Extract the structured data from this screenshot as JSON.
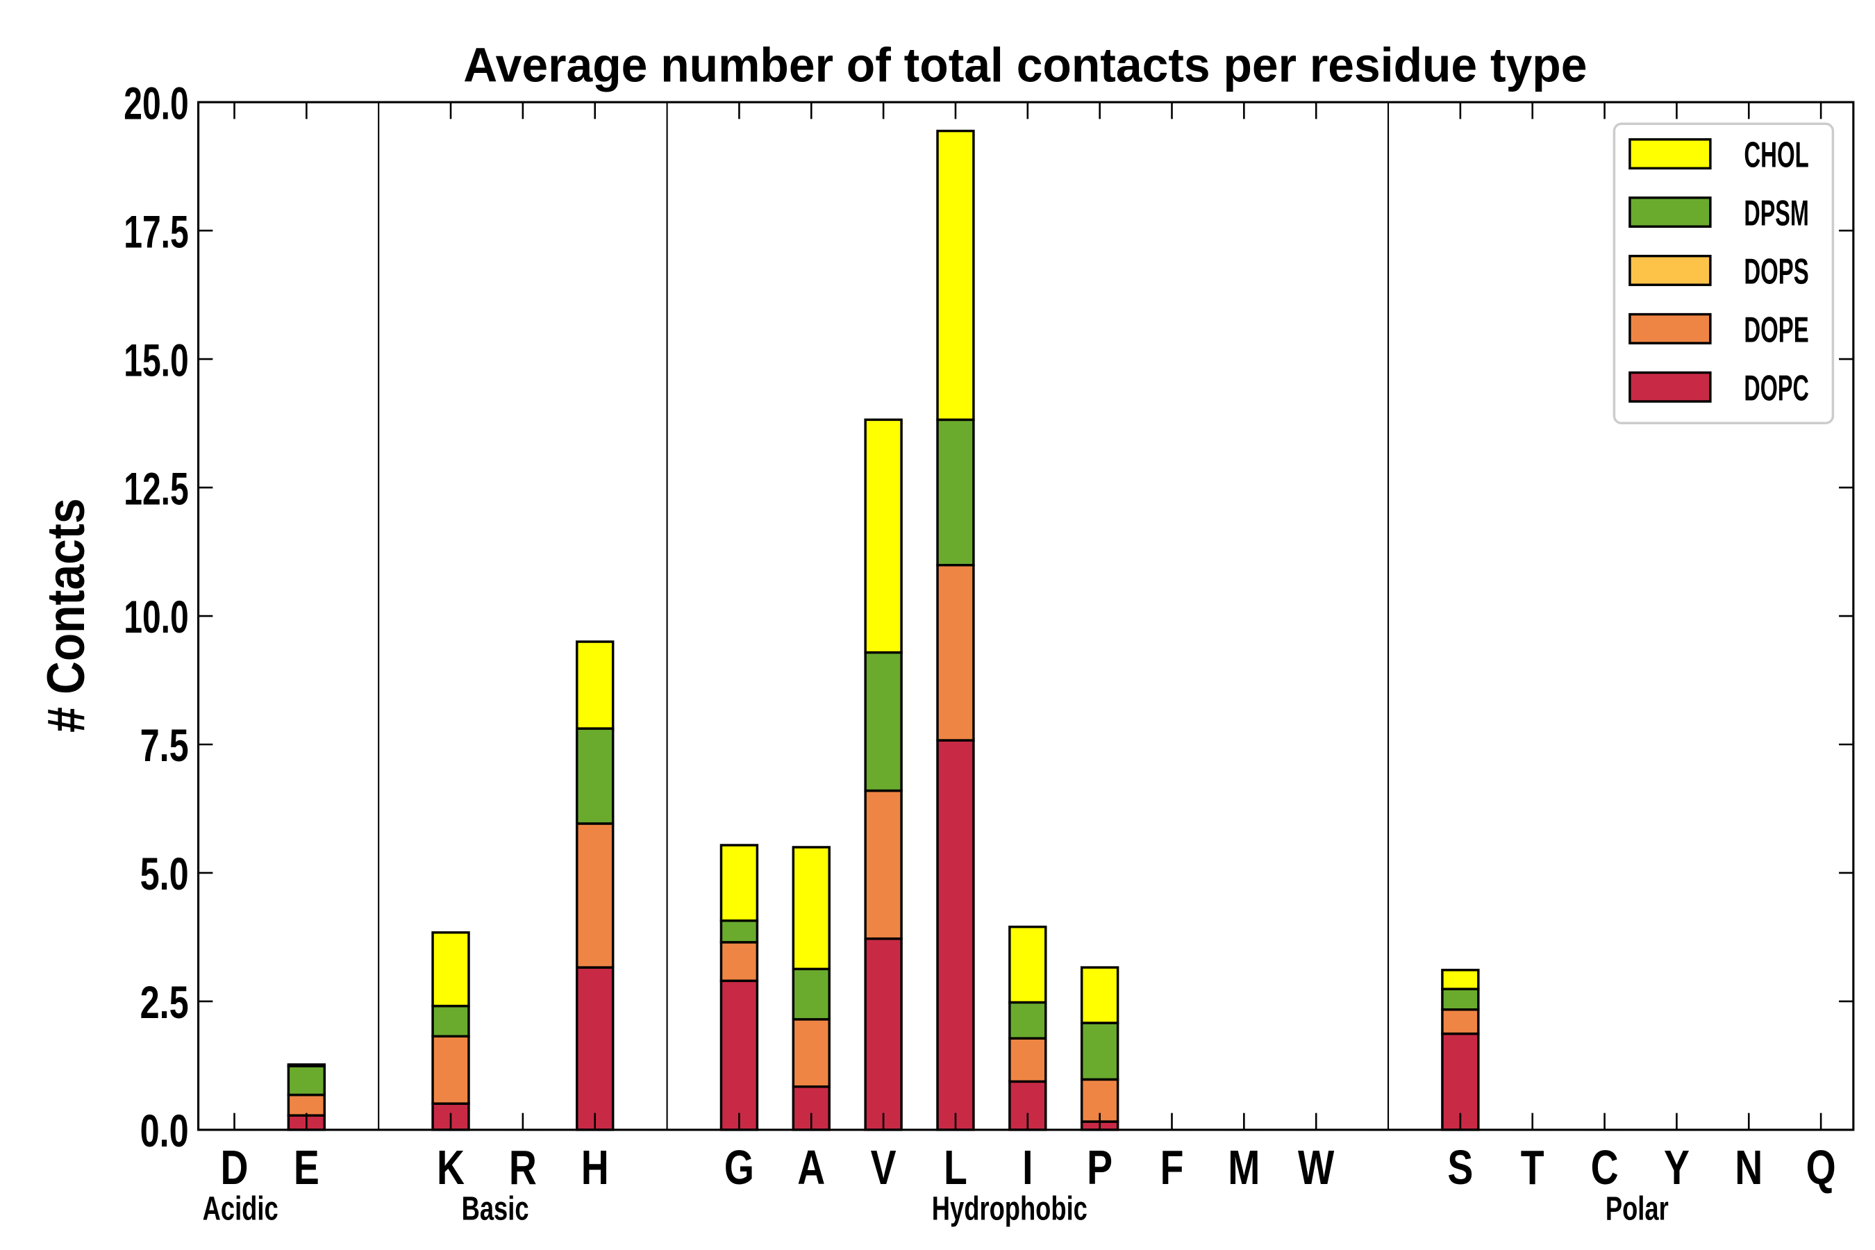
{
  "chart_data": {
    "type": "bar",
    "stacked": true,
    "title": "Average number of total contacts per residue type",
    "xlabel": "",
    "ylabel": "# Contacts",
    "ylim": [
      0,
      20
    ],
    "yticks": [
      "0.0",
      "2.5",
      "5.0",
      "7.5",
      "10.0",
      "12.5",
      "15.0",
      "17.5",
      "20.0"
    ],
    "grid": false,
    "legend_position": "top-right",
    "categories": [
      "D",
      "E",
      "K",
      "R",
      "H",
      "G",
      "A",
      "V",
      "L",
      "I",
      "P",
      "F",
      "M",
      "W",
      "S",
      "T",
      "C",
      "Y",
      "N",
      "Q"
    ],
    "groups": [
      {
        "name": "Acidic",
        "categories": [
          "D",
          "E"
        ]
      },
      {
        "name": "Basic",
        "categories": [
          "K",
          "R",
          "H"
        ]
      },
      {
        "name": "Hydrophobic",
        "categories": [
          "G",
          "A",
          "V",
          "L",
          "I",
          "P",
          "F",
          "M",
          "W"
        ]
      },
      {
        "name": "Polar",
        "categories": [
          "S",
          "T",
          "C",
          "Y",
          "N",
          "Q"
        ]
      }
    ],
    "series": [
      {
        "name": "DOPC",
        "color": "#c82a45",
        "values": [
          0,
          0.28,
          0.51,
          0,
          3.16,
          2.9,
          0.84,
          3.72,
          7.58,
          0.94,
          0.16,
          0,
          0,
          0,
          1.87,
          0,
          0,
          0,
          0,
          0
        ]
      },
      {
        "name": "DOPE",
        "color": "#ef8544",
        "values": [
          0,
          0.4,
          1.31,
          0,
          2.8,
          0.75,
          1.31,
          2.88,
          3.41,
          0.84,
          0.82,
          0,
          0,
          0,
          0.47,
          0,
          0,
          0,
          0,
          0
        ]
      },
      {
        "name": "DOPS",
        "color": "#fdc349",
        "values": [
          0,
          0,
          0,
          0,
          0,
          0,
          0,
          0,
          0,
          0,
          0,
          0,
          0,
          0,
          0,
          0,
          0,
          0,
          0,
          0
        ]
      },
      {
        "name": "DPSM",
        "color": "#6aab2e",
        "values": [
          0,
          0.56,
          0.59,
          0,
          1.85,
          0.42,
          0.98,
          2.69,
          2.83,
          0.7,
          1.1,
          0,
          0,
          0,
          0.4,
          0,
          0,
          0,
          0,
          0
        ]
      },
      {
        "name": "CHOL",
        "color": "#ffff00",
        "values": [
          0,
          0.03,
          1.43,
          0,
          1.69,
          1.47,
          2.37,
          4.53,
          5.62,
          1.47,
          1.08,
          0,
          0,
          0,
          0.37,
          0,
          0,
          0,
          0,
          0
        ]
      }
    ],
    "legend_order": [
      "CHOL",
      "DPSM",
      "DOPS",
      "DOPE",
      "DOPC"
    ]
  }
}
